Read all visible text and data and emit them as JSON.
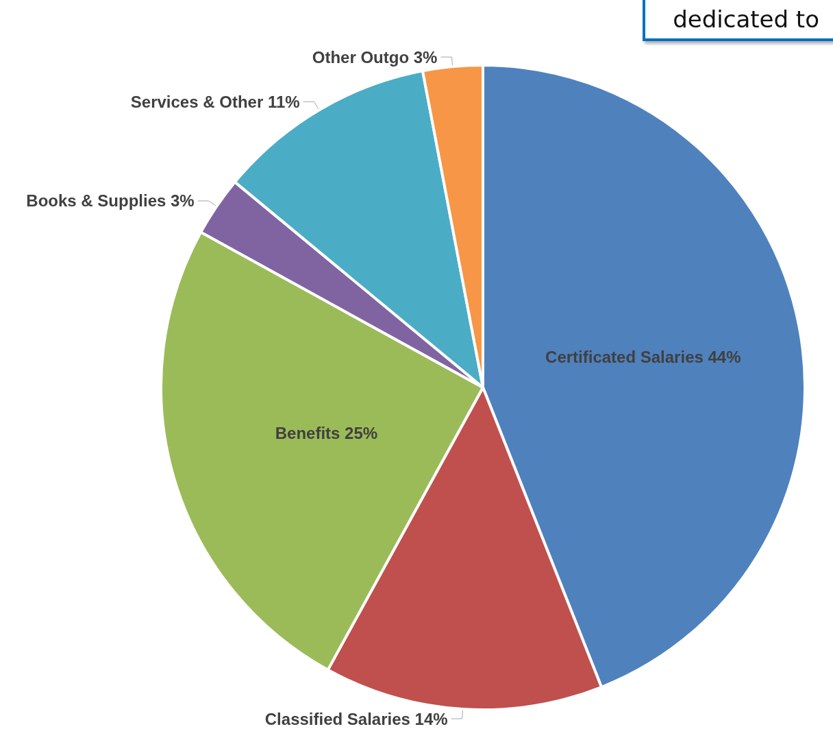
{
  "chart_data": {
    "type": "pie",
    "categories": [
      "Certificated Salaries",
      "Classified Salaries",
      "Benefits",
      "Books & Supplies",
      "Services & Other",
      "Other Outgo"
    ],
    "values": [
      44,
      14,
      25,
      3,
      11,
      3
    ],
    "value_labels": [
      "44%",
      "14%",
      "25%",
      "3%",
      "11%",
      "3%"
    ],
    "colors": [
      "#4f81bd",
      "#c0504d",
      "#9bbb59",
      "#8064a2",
      "#4bacc6",
      "#f79646"
    ],
    "annotations": [
      "dedicated to"
    ],
    "legend": false
  }
}
